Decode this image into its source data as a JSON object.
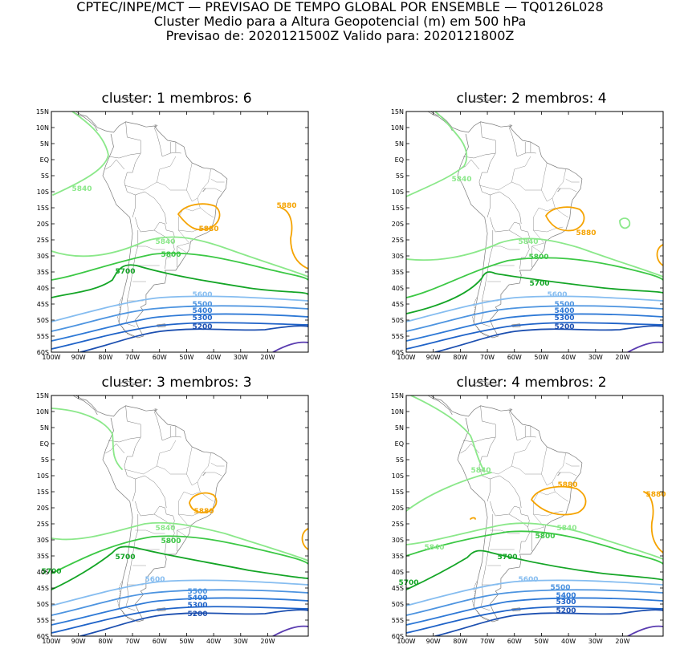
{
  "header": {
    "line1": "CPTEC/INPE/MCT — PREVISAO DE TEMPO GLOBAL POR ENSEMBLE — TQ0126L028",
    "line2": "Cluster Medio para a Altura Geopotencial (m) em 500 hPa",
    "line3": "Previsao de: 2020121500Z    Valido para: 2020121800Z"
  },
  "axes": {
    "lat_ticks": [
      "15N",
      "10N",
      "5N",
      "EQ",
      "5S",
      "10S",
      "15S",
      "20S",
      "25S",
      "30S",
      "35S",
      "40S",
      "45S",
      "50S",
      "55S",
      "60S"
    ],
    "lon_ticks": [
      "100W",
      "90W",
      "80W",
      "70W",
      "60W",
      "50W",
      "40W",
      "30W",
      "20W"
    ]
  },
  "colors": {
    "c5200": "#1c4fb0",
    "c5300": "#1f63c8",
    "c5400": "#2e79d6",
    "c5500": "#4d94e0",
    "c5600": "#86bdf0",
    "c5700": "#14a526",
    "c5800": "#3cc845",
    "c5840": "#8be88a",
    "c5880": "#f5a300",
    "low": "#5a3cb0",
    "coast": "#7a7a7a"
  },
  "panels": [
    {
      "title": "cluster: 1   membros: 6",
      "labels": [
        "5840",
        "5880",
        "5880",
        "5840",
        "5800",
        "5700",
        "5600",
        "5500",
        "5400",
        "5300",
        "5200"
      ]
    },
    {
      "title": "cluster: 2   membros: 4",
      "labels": [
        "5840",
        "5880",
        "5840",
        "5800",
        "5700",
        "5600",
        "5500",
        "5400",
        "5300",
        "5200"
      ]
    },
    {
      "title": "cluster: 3   membros: 3",
      "labels": [
        "5880",
        "5840",
        "5800",
        "5700",
        "5600",
        "5500",
        "5400",
        "5300",
        "5200",
        "5700"
      ]
    },
    {
      "title": "cluster: 4   membros: 2",
      "labels": [
        "5840",
        "5880",
        "5880",
        "5840",
        "5800",
        "5840",
        "5700",
        "5600",
        "5500",
        "5400",
        "5300",
        "5200",
        "5700"
      ]
    }
  ]
}
